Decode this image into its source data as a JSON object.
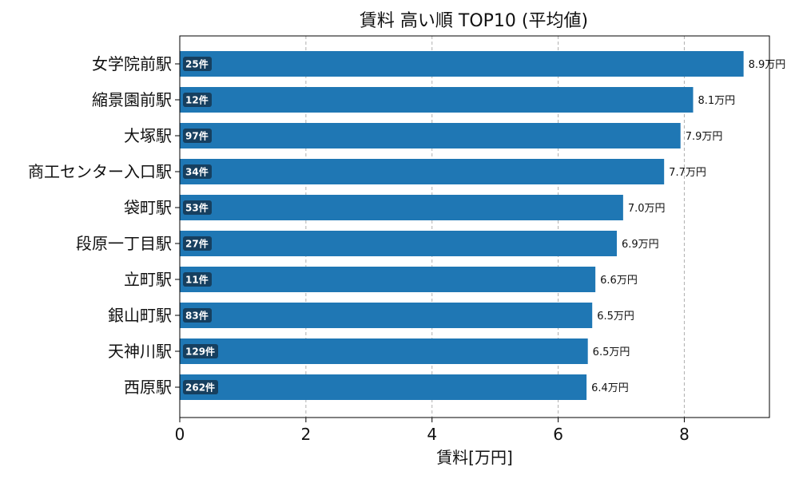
{
  "chart_data": {
    "type": "bar",
    "orientation": "horizontal",
    "title": "賃料 高い順 TOP10 (平均値)",
    "xlabel": "賃料[万円]",
    "ylabel": "",
    "xlim": [
      0,
      9.35
    ],
    "xticks": [
      "0",
      "2",
      "4",
      "6",
      "8"
    ],
    "grid": "x-dashed",
    "bar_color": "#1f77b4",
    "count_badge_color": "#163f5f",
    "categories": [
      "女学院前駅",
      "縮景園前駅",
      "大塚駅",
      "商工センター入口駅",
      "袋町駅",
      "段原一丁目駅",
      "立町駅",
      "銀山町駅",
      "天神川駅",
      "西原駅"
    ],
    "values": [
      8.94,
      8.14,
      7.94,
      7.68,
      7.03,
      6.93,
      6.59,
      6.54,
      6.47,
      6.45
    ],
    "value_labels": [
      "8.9万円",
      "8.1万円",
      "7.9万円",
      "7.7万円",
      "7.0万円",
      "6.9万円",
      "6.6万円",
      "6.5万円",
      "6.5万円",
      "6.4万円"
    ],
    "counts": [
      "25件",
      "12件",
      "97件",
      "34件",
      "53件",
      "27件",
      "11件",
      "83件",
      "129件",
      "262件"
    ]
  }
}
